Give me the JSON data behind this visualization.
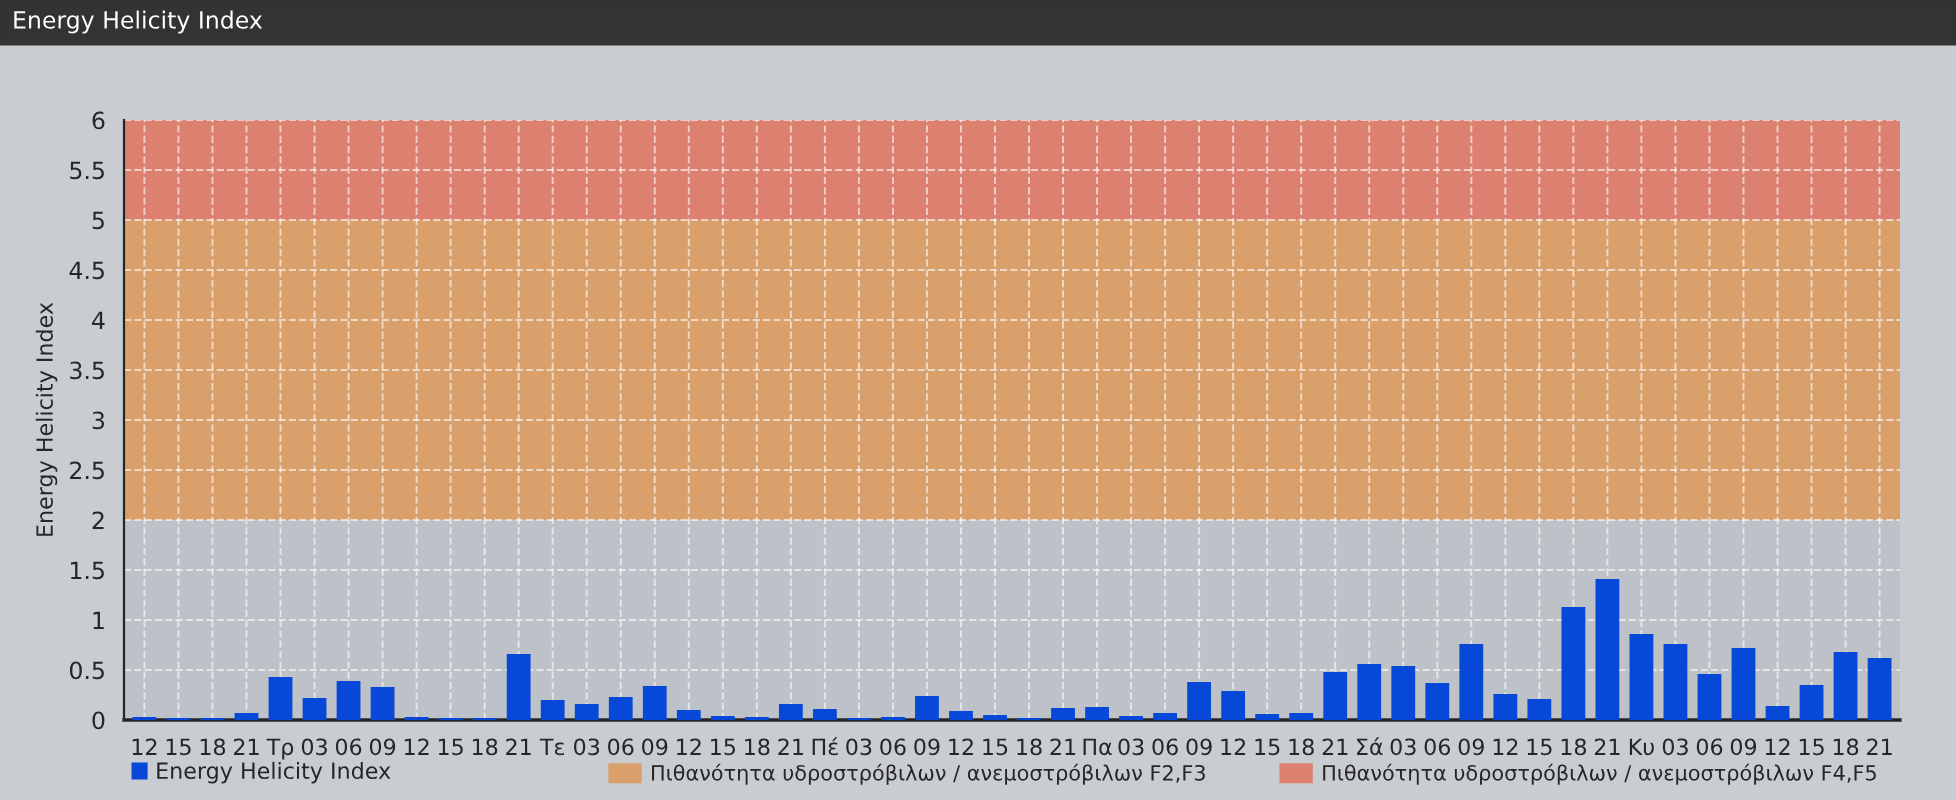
{
  "chart_data": {
    "type": "bar",
    "title": "Energy Helicity Index",
    "ylabel": "Energy Helicity Index",
    "categories": [
      "12",
      "15",
      "18",
      "21",
      "Τρ",
      "03",
      "06",
      "09",
      "12",
      "15",
      "18",
      "21",
      "Τε",
      "03",
      "06",
      "09",
      "12",
      "15",
      "18",
      "21",
      "Πέ",
      "03",
      "06",
      "09",
      "12",
      "15",
      "18",
      "21",
      "Πα",
      "03",
      "06",
      "09",
      "12",
      "15",
      "18",
      "21",
      "Σά",
      "03",
      "06",
      "09",
      "12",
      "15",
      "18",
      "21",
      "Κυ",
      "03",
      "06",
      "09",
      "12",
      "15",
      "18",
      "21"
    ],
    "series": [
      {
        "name": "Energy Helicity Index",
        "color": "#0748d8",
        "values": [
          0.03,
          0.02,
          0.02,
          0.07,
          0.43,
          0.22,
          0.39,
          0.33,
          0.03,
          0.02,
          0.02,
          0.66,
          0.2,
          0.16,
          0.23,
          0.34,
          0.1,
          0.04,
          0.03,
          0.16,
          0.11,
          0.02,
          0.03,
          0.24,
          0.09,
          0.05,
          0.02,
          0.12,
          0.13,
          0.04,
          0.07,
          0.38,
          0.29,
          0.06,
          0.07,
          0.48,
          0.56,
          0.54,
          0.37,
          0.76,
          0.26,
          0.21,
          1.13,
          1.41,
          0.86,
          0.76,
          0.46,
          0.72,
          0.14,
          0.35,
          0.68,
          0.62
        ]
      }
    ],
    "ylim": [
      0,
      6
    ],
    "yticks": [
      0,
      0.5,
      1,
      1.5,
      2,
      2.5,
      3,
      3.5,
      4,
      4.5,
      5,
      5.5,
      6
    ],
    "bands": [
      {
        "axis": "y",
        "from": 2,
        "to": 5,
        "label": "Πιθανότητα υδροστρόβιλων / ανεμοστρόβιλων F2,F3",
        "color": "#d9a06c"
      },
      {
        "axis": "y",
        "from": 5,
        "to": 6,
        "label": "Πιθανότητα υδροστρόβιλων / ανεμοστρόβιλων F4,F5",
        "color": "#dc8070"
      }
    ],
    "grid": true,
    "legend": "bottom left"
  }
}
